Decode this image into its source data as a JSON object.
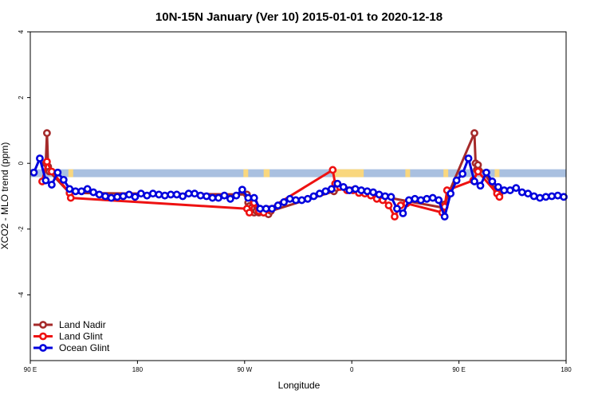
{
  "chart_data": {
    "type": "line",
    "title": "10N-15N January (Ver 10)   2015-01-01 to 2020-12-18",
    "xlabel": "Longitude",
    "ylabel": "XCO2 - MLO trend (ppm)",
    "xlim": [
      0,
      450
    ],
    "ylim": [
      -6,
      4
    ],
    "x_ticks": [
      {
        "value": 0,
        "label": "90 E"
      },
      {
        "value": 90,
        "label": "180"
      },
      {
        "value": 180,
        "label": "90 W"
      },
      {
        "value": 270,
        "label": "0"
      },
      {
        "value": 360,
        "label": "90 E"
      },
      {
        "value": 450,
        "label": "180"
      }
    ],
    "y_ticks": [
      {
        "value": 4,
        "label": "4"
      },
      {
        "value": 2,
        "label": "2"
      },
      {
        "value": 0,
        "label": "0"
      },
      {
        "value": -2,
        "label": "-2"
      },
      {
        "value": -4,
        "label": "-4"
      }
    ],
    "background_band": {
      "y_range": [
        -0.42,
        -0.18
      ],
      "ocean_color": "#a9c0e0",
      "land_color": "#f9d77e",
      "land_segments": [
        [
          32,
          36
        ],
        [
          179,
          183
        ],
        [
          196,
          201
        ],
        [
          254,
          280
        ],
        [
          315,
          319
        ],
        [
          347,
          351
        ],
        [
          390,
          394
        ]
      ]
    },
    "series": [
      {
        "name": "Land Nadir",
        "color": "#a52a2a",
        "x": [
          13,
          14,
          15,
          16,
          33,
          182,
          183,
          184,
          186,
          188,
          190,
          192,
          196,
          200,
          202,
          255,
          257,
          347,
          348,
          352,
          373,
          374,
          375,
          376,
          392,
          394
        ],
        "y": [
          0.0,
          0.92,
          -0.1,
          -0.25,
          -0.9,
          -0.95,
          -1.2,
          -1.3,
          -1.35,
          -1.5,
          -1.45,
          -1.5,
          -1.5,
          -1.55,
          -1.45,
          -0.85,
          -0.75,
          -1.35,
          -1.25,
          -0.85,
          0.92,
          0.0,
          -0.2,
          -0.05,
          -0.85,
          -0.95
        ]
      },
      {
        "name": "Land Glint",
        "color": "#ee1111",
        "x": [
          10,
          14,
          18,
          33,
          34,
          182,
          184,
          188,
          192,
          196,
          200,
          254,
          256,
          260,
          266,
          271,
          276,
          281,
          286,
          291,
          296,
          301,
          306,
          311,
          316,
          346,
          348,
          350,
          372,
          376,
          392,
          394
        ],
        "y": [
          -0.55,
          0.05,
          -0.25,
          -0.9,
          -1.05,
          -1.38,
          -1.5,
          -1.2,
          -1.45,
          -1.5,
          -1.4,
          -0.2,
          -0.62,
          -0.72,
          -0.82,
          -0.82,
          -0.9,
          -0.92,
          -0.98,
          -1.08,
          -1.12,
          -1.28,
          -1.62,
          -1.28,
          -1.22,
          -1.5,
          -1.32,
          -0.82,
          -0.52,
          -0.25,
          -0.92,
          -1.02
        ]
      },
      {
        "name": "Ocean Glint",
        "color": "#0000dd",
        "x": [
          3,
          8,
          13,
          18,
          23,
          28,
          33,
          38,
          43,
          48,
          53,
          58,
          63,
          68,
          73,
          78,
          83,
          88,
          93,
          98,
          103,
          108,
          113,
          118,
          123,
          128,
          133,
          138,
          143,
          148,
          153,
          158,
          163,
          168,
          173,
          178,
          183,
          188,
          193,
          198,
          203,
          208,
          213,
          218,
          223,
          228,
          233,
          238,
          243,
          248,
          253,
          258,
          263,
          268,
          273,
          278,
          283,
          288,
          293,
          298,
          303,
          308,
          313,
          318,
          323,
          328,
          333,
          338,
          343,
          348,
          353,
          358,
          363,
          368,
          373,
          378,
          383,
          388,
          393,
          398,
          403,
          408,
          413,
          418,
          423,
          428,
          433,
          438,
          443,
          448
        ],
        "y": [
          -0.28,
          0.15,
          -0.52,
          -0.65,
          -0.28,
          -0.5,
          -0.78,
          -0.85,
          -0.85,
          -0.78,
          -0.88,
          -0.95,
          -1.0,
          -1.05,
          -1.02,
          -1.0,
          -0.95,
          -1.02,
          -0.92,
          -0.98,
          -0.92,
          -0.95,
          -0.98,
          -0.95,
          -0.95,
          -1.0,
          -0.92,
          -0.92,
          -0.98,
          -1.0,
          -1.05,
          -1.05,
          -0.98,
          -1.08,
          -0.98,
          -0.8,
          -1.05,
          -1.05,
          -1.38,
          -1.38,
          -1.38,
          -1.28,
          -1.18,
          -1.08,
          -1.12,
          -1.12,
          -1.08,
          -1.0,
          -0.92,
          -0.85,
          -0.78,
          -0.62,
          -0.72,
          -0.82,
          -0.78,
          -0.82,
          -0.85,
          -0.88,
          -0.95,
          -1.0,
          -1.02,
          -1.38,
          -1.52,
          -1.12,
          -1.08,
          -1.12,
          -1.08,
          -1.05,
          -1.12,
          -1.62,
          -0.92,
          -0.52,
          -0.32,
          0.15,
          -0.55,
          -0.68,
          -0.28,
          -0.55,
          -0.72,
          -0.82,
          -0.82,
          -0.75,
          -0.88,
          -0.92,
          -1.0,
          -1.05,
          -1.02,
          -1.0,
          -0.98,
          -1.02
        ]
      }
    ],
    "legend": {
      "position": "bottom-left"
    },
    "grid": false
  }
}
